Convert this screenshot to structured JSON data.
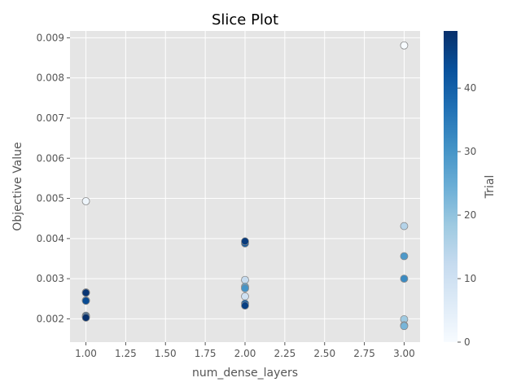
{
  "chart_data": {
    "type": "scatter",
    "title": "Slice Plot",
    "xlabel": "num_dense_layers",
    "ylabel": "Objective Value",
    "xlim": [
      0.9,
      3.1
    ],
    "ylim": [
      0.00142,
      0.00917
    ],
    "x_ticks": [
      "1.00",
      "1.25",
      "1.50",
      "1.75",
      "2.00",
      "2.25",
      "2.50",
      "2.75",
      "3.00"
    ],
    "y_ticks": [
      "0.002",
      "0.003",
      "0.004",
      "0.005",
      "0.006",
      "0.007",
      "0.008",
      "0.009"
    ],
    "grid": true,
    "colorbar": {
      "label": "Trial",
      "range": [
        0,
        49
      ],
      "ticks": [
        "0",
        "10",
        "20",
        "30",
        "40"
      ],
      "colormap": "Blues",
      "colors": [
        "#f7fbff",
        "#deebf7",
        "#c6dbef",
        "#9ecae1",
        "#6baed6",
        "#4292c6",
        "#2171b5",
        "#08519c",
        "#08306b"
      ]
    },
    "points": [
      {
        "x": 3.0,
        "y": 0.00881,
        "trial": 0
      },
      {
        "x": 1.0,
        "y": 0.00493,
        "trial": 2
      },
      {
        "x": 3.0,
        "y": 0.00431,
        "trial": 15
      },
      {
        "x": 2.0,
        "y": 0.00297,
        "trial": 12
      },
      {
        "x": 2.0,
        "y": 0.00256,
        "trial": 10
      },
      {
        "x": 3.0,
        "y": 0.00199,
        "trial": 18
      },
      {
        "x": 3.0,
        "y": 0.00184,
        "trial": 21
      },
      {
        "x": 3.0,
        "y": 0.00182,
        "trial": 23
      },
      {
        "x": 2.0,
        "y": 0.0028,
        "trial": 26
      },
      {
        "x": 2.0,
        "y": 0.00276,
        "trial": 30
      },
      {
        "x": 3.0,
        "y": 0.00356,
        "trial": 29
      },
      {
        "x": 3.0,
        "y": 0.003,
        "trial": 32
      },
      {
        "x": 2.0,
        "y": 0.00388,
        "trial": 42
      },
      {
        "x": 2.0,
        "y": 0.00393,
        "trial": 47
      },
      {
        "x": 2.0,
        "y": 0.00238,
        "trial": 41
      },
      {
        "x": 2.0,
        "y": 0.00233,
        "trial": 46
      },
      {
        "x": 1.0,
        "y": 0.00266,
        "trial": 45
      },
      {
        "x": 1.0,
        "y": 0.00265,
        "trial": 48
      },
      {
        "x": 1.0,
        "y": 0.00246,
        "trial": 39
      },
      {
        "x": 1.0,
        "y": 0.00245,
        "trial": 44
      },
      {
        "x": 1.0,
        "y": 0.00208,
        "trial": 40
      },
      {
        "x": 1.0,
        "y": 0.00206,
        "trial": 43
      },
      {
        "x": 1.0,
        "y": 0.00203,
        "trial": 49
      }
    ]
  }
}
